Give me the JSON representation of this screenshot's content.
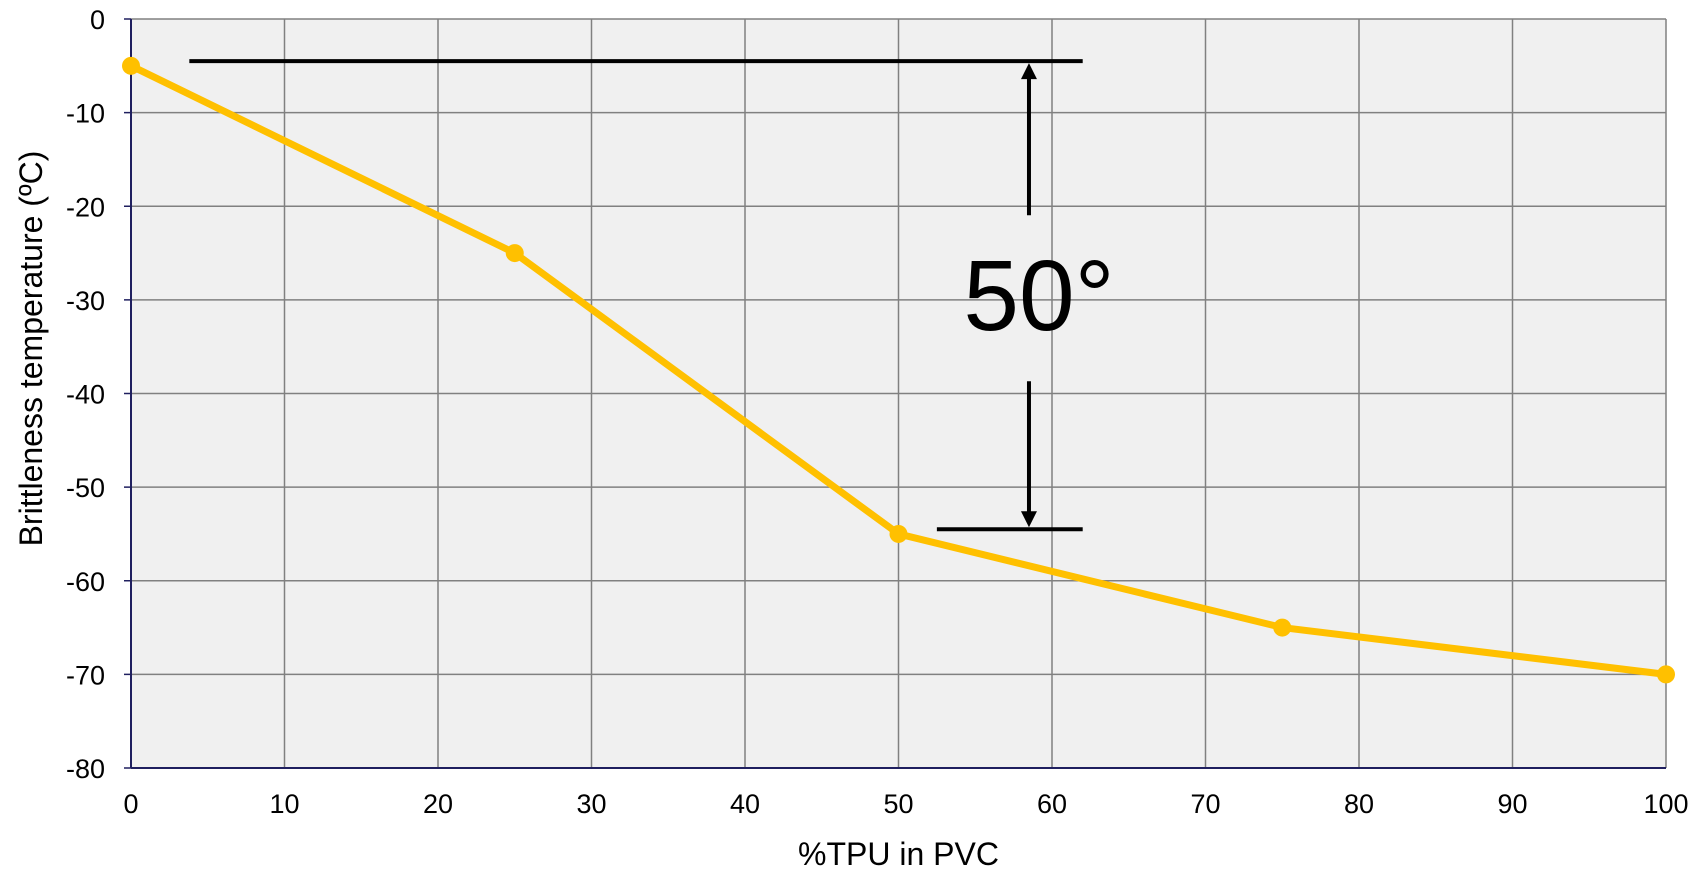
{
  "chart_data": {
    "type": "line",
    "xlabel": "%TPU in PVC",
    "ylabel": "Brittleness temperature (ºC)",
    "xlim": [
      0,
      100
    ],
    "ylim": [
      -80,
      0
    ],
    "x_ticks": [
      "0",
      "10",
      "20",
      "30",
      "40",
      "50",
      "60",
      "70",
      "80",
      "90",
      "100"
    ],
    "y_ticks": [
      "0",
      "-10",
      "-20",
      "-30",
      "-40",
      "-50",
      "-60",
      "-70",
      "-80"
    ],
    "grid": true,
    "legend": "none",
    "series": [
      {
        "x": [
          0,
          25,
          50,
          75,
          100
        ],
        "y": [
          -5,
          -25,
          -55,
          -65,
          -70
        ],
        "color": "#ffc000"
      }
    ],
    "annotation": {
      "text": "50°",
      "from_y": -4.5,
      "to_y": -54.5,
      "x_from": 3.8,
      "x_to": 62,
      "x_arrow": 58.5,
      "x_lower_from": 52.5
    },
    "colors": {
      "plot_background": "#f0f0f0",
      "grid": "#808080",
      "axis": "#1f1f5f",
      "annotation": "#000000"
    }
  }
}
